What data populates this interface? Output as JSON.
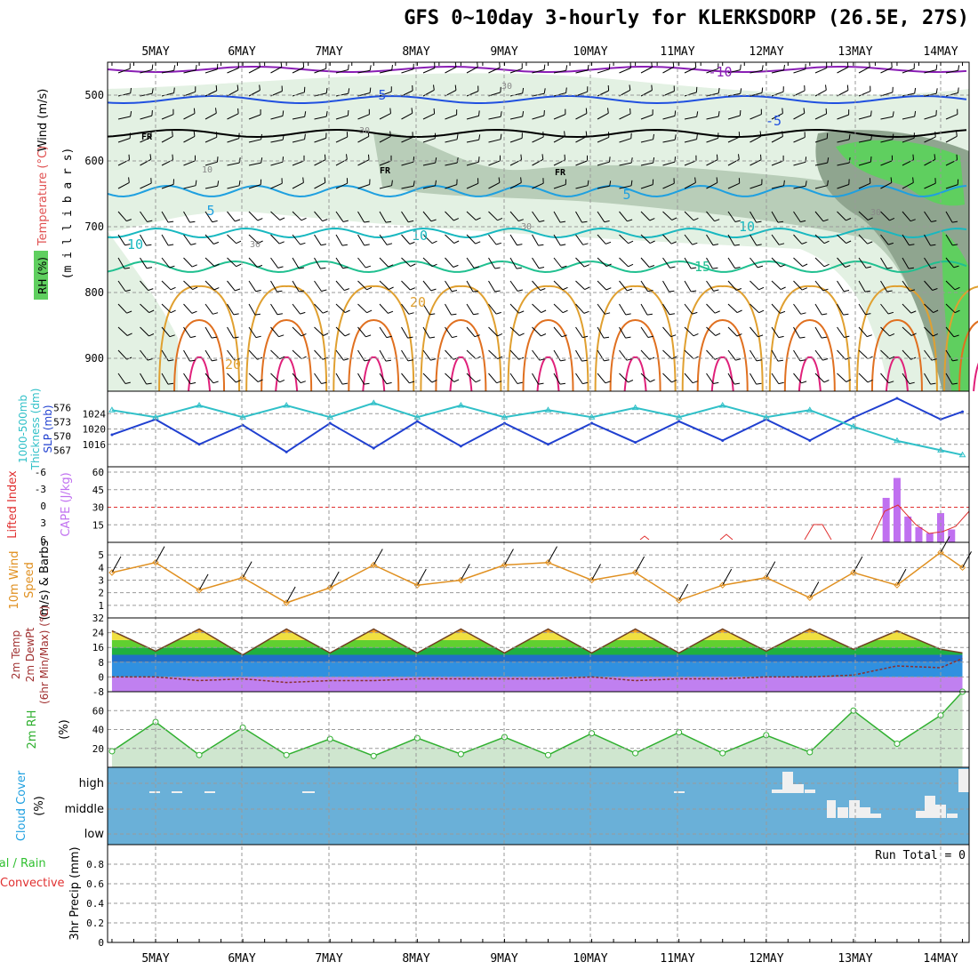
{
  "title": "GFS 0~10day 3-hourly for KLERKSDORP (26.5E, 27S)",
  "colors": {
    "frame": "#000000",
    "grid": "#9a9a9a",
    "rh_light": "#e3f1e3",
    "rh_mid": "#b8cdb8",
    "rh_dark": "#8fa58f",
    "rh_green": "#5fcf5f",
    "temp_purple": "#8a1fb5",
    "temp_blue": "#2050e0",
    "temp_lightblue": "#1fa0e0",
    "temp_teal": "#18b8c0",
    "temp_green": "#20c090",
    "temp_orange": "#e0a030",
    "temp_darkorange": "#e07020",
    "temp_magenta": "#e0207a",
    "freezing": "#000000",
    "slp": "#2040d0",
    "thickness": "#30c0c8",
    "cape": "#c070f0",
    "lifted": "#e03030",
    "wind10": "#e09020",
    "rh2m": "#30b030",
    "cloud_bg": "#6ab0d8",
    "cloud_fill": "#f0f0f0",
    "precip_total": "#30c030",
    "precip_conv": "#e03030"
  },
  "x_labels": [
    "5MAY",
    "6MAY",
    "7MAY",
    "8MAY",
    "9MAY",
    "10MAY",
    "11MAY",
    "12MAY",
    "13MAY",
    "14MAY"
  ],
  "panels": {
    "upper": {
      "ylabel_lines": [
        "Wind (m/s)",
        "Temperature (°C)",
        "(m i l l i b a r s)",
        "RH (%)"
      ],
      "yticks": [
        "500",
        "600",
        "700",
        "800",
        "900"
      ],
      "contour_labels": [
        "-10",
        "5",
        "-5",
        "5",
        "5",
        "10",
        "10",
        "10",
        "15",
        "20",
        "20",
        "FR",
        "FR",
        "FR",
        "30",
        "30",
        "30",
        "30",
        "10",
        "30"
      ]
    },
    "slp": {
      "ylabel_lines": [
        "1000-500mb",
        "Thickness (dm)",
        "SLP (mb)"
      ],
      "thick_ticks": [
        "576",
        "573",
        "570",
        "567"
      ],
      "slp_ticks": [
        "1024",
        "1020",
        "1016"
      ]
    },
    "cape": {
      "ylabel_lines": [
        "Lifted Index",
        "CAPE (J/kg)"
      ],
      "li_ticks": [
        "-6",
        "-3",
        "0",
        "3",
        "6"
      ],
      "cape_ticks": [
        "60",
        "45",
        "30",
        "15"
      ]
    },
    "wind10": {
      "ylabel_lines": [
        "10m Wind",
        "Speed",
        "(m/s) & Barbs"
      ],
      "yticks": [
        "5",
        "4",
        "3",
        "2",
        "1"
      ]
    },
    "temp2m": {
      "ylabel_lines": [
        "2m Temp",
        "2m DewPt",
        "(6hr Min/Max) (°C)"
      ],
      "yticks": [
        "32",
        "24",
        "16",
        "8",
        "0",
        "-8"
      ]
    },
    "rh2m": {
      "ylabel_lines": [
        "2m RH",
        "(%)"
      ],
      "yticks": [
        "60",
        "40",
        "20"
      ]
    },
    "cloud": {
      "ylabel_lines": [
        "Cloud Cover",
        "(%)"
      ],
      "levels": [
        "high",
        "middle",
        "low"
      ]
    },
    "precip": {
      "ylabel_lines": [
        "Total / Rain",
        "Convective",
        "3hr Precip (mm)"
      ],
      "yticks": [
        "0.8",
        "0.6",
        "0.4",
        "0.2",
        "0"
      ],
      "run_total": "Run Total = 0"
    }
  },
  "chart_data": [
    {
      "type": "line",
      "title": "1000-500mb Thickness (dm) & SLP (mb)",
      "x": [
        "4MAY 12Z",
        "5MAY 00Z",
        "5MAY 12Z",
        "6MAY 00Z",
        "6MAY 12Z",
        "7MAY 00Z",
        "7MAY 12Z",
        "8MAY 00Z",
        "8MAY 12Z",
        "9MAY 00Z",
        "9MAY 12Z",
        "10MAY 00Z",
        "10MAY 12Z",
        "11MAY 00Z",
        "11MAY 12Z",
        "12MAY 00Z",
        "12MAY 12Z",
        "13MAY 00Z",
        "13MAY 12Z",
        "14MAY 00Z",
        "14MAY 06Z"
      ],
      "series": [
        {
          "name": "SLP",
          "values": [
            1018.5,
            1022.5,
            1016,
            1021,
            1014,
            1021.5,
            1015,
            1022,
            1015.5,
            1021.5,
            1016,
            1021.5,
            1016.5,
            1022,
            1017,
            1022.5,
            1017,
            1023,
            1028,
            1022.5,
            1024.5
          ]
        },
        {
          "name": "Thickness",
          "values": [
            575.5,
            574,
            576.5,
            574,
            576.5,
            574,
            577,
            574,
            576.5,
            574,
            575.5,
            574,
            576,
            574,
            576.5,
            574,
            575.5,
            572,
            569,
            567,
            566
          ]
        }
      ],
      "ylim_slp": [
        1012,
        1028
      ],
      "ylim_thickness": [
        565,
        578
      ]
    },
    {
      "type": "bar",
      "title": "CAPE (J/kg)",
      "categories": [
        "13MAY 09Z",
        "13MAY 12Z",
        "13MAY 15Z",
        "13MAY 18Z",
        "13MAY 21Z",
        "14MAY 00Z",
        "14MAY 03Z"
      ],
      "values": [
        38,
        55,
        22,
        13,
        8,
        25,
        11
      ],
      "ylim": [
        0,
        60
      ]
    },
    {
      "type": "line",
      "title": "10m Wind Speed (m/s)",
      "x": [
        "4MAY 12Z",
        "5MAY 00Z",
        "5MAY 12Z",
        "6MAY 00Z",
        "6MAY 12Z",
        "7MAY 00Z",
        "7MAY 12Z",
        "8MAY 00Z",
        "8MAY 12Z",
        "9MAY 00Z",
        "9MAY 12Z",
        "10MAY 00Z",
        "10MAY 12Z",
        "11MAY 00Z",
        "11MAY 12Z",
        "12MAY 00Z",
        "12MAY 12Z",
        "13MAY 00Z",
        "13MAY 12Z",
        "14MAY 00Z",
        "14MAY 06Z"
      ],
      "values": [
        3.6,
        4.4,
        2.2,
        3.2,
        1.2,
        2.4,
        4.2,
        2.6,
        3.0,
        4.2,
        4.4,
        3.0,
        3.6,
        1.4,
        2.6,
        3.2,
        1.6,
        3.6,
        2.6,
        5.2,
        4.0
      ],
      "ylim": [
        0,
        6
      ]
    },
    {
      "type": "area",
      "title": "2m Temp / DewPt (°C)",
      "x": [
        "4MAY 12Z",
        "5MAY 00Z",
        "5MAY 12Z",
        "6MAY 00Z",
        "6MAY 12Z",
        "7MAY 00Z",
        "7MAY 12Z",
        "8MAY 00Z",
        "8MAY 12Z",
        "9MAY 00Z",
        "9MAY 12Z",
        "10MAY 00Z",
        "10MAY 12Z",
        "11MAY 00Z",
        "11MAY 12Z",
        "12MAY 00Z",
        "12MAY 12Z",
        "13MAY 00Z",
        "13MAY 12Z",
        "14MAY 00Z",
        "14MAY 06Z"
      ],
      "series": [
        {
          "name": "2m Temp",
          "values": [
            25,
            14,
            26,
            12,
            26,
            13,
            26,
            13,
            26,
            13,
            26,
            13,
            26,
            13,
            26,
            14,
            26,
            15,
            25,
            15,
            13
          ]
        },
        {
          "name": "2m DewPt",
          "values": [
            0,
            0,
            -2,
            -1,
            -3,
            -2,
            -2,
            -1,
            -1,
            -1,
            -1,
            0,
            -2,
            -1,
            -1,
            0,
            0,
            1,
            6,
            5,
            10
          ]
        }
      ],
      "ylim": [
        -8,
        32
      ]
    },
    {
      "type": "area",
      "title": "2m RH (%)",
      "x": [
        "4MAY 12Z",
        "5MAY 00Z",
        "5MAY 12Z",
        "6MAY 00Z",
        "6MAY 12Z",
        "7MAY 00Z",
        "7MAY 12Z",
        "8MAY 00Z",
        "8MAY 12Z",
        "9MAY 00Z",
        "9MAY 12Z",
        "10MAY 00Z",
        "10MAY 12Z",
        "11MAY 00Z",
        "11MAY 12Z",
        "12MAY 00Z",
        "12MAY 12Z",
        "13MAY 00Z",
        "13MAY 12Z",
        "14MAY 00Z",
        "14MAY 06Z"
      ],
      "values": [
        17,
        48,
        13,
        42,
        13,
        30,
        12,
        31,
        14,
        32,
        13,
        36,
        15,
        37,
        15,
        34,
        16,
        60,
        25,
        55,
        80
      ],
      "ylim": [
        0,
        80
      ]
    },
    {
      "type": "table",
      "title": "Cloud Cover (%)",
      "rows": [
        {
          "level": "high",
          "periods": [
            "4MAY 21Z",
            "5MAY 03Z",
            "5MAY 15Z",
            "7MAY 06Z",
            "11MAY 00Z",
            "12MAY 03Z",
            "12MAY 06Z",
            "12MAY 09Z",
            "14MAY 06Z"
          ]
        },
        {
          "level": "middle",
          "periods": [
            "12MAY 21Z",
            "13MAY 00Z",
            "13MAY 03Z",
            "13MAY 06Z",
            "14MAY 00Z",
            "14MAY 03Z"
          ]
        }
      ]
    },
    {
      "type": "bar",
      "title": "3hr Precip (mm)",
      "categories": [],
      "values": [],
      "ylim": [
        0,
        1
      ]
    }
  ]
}
